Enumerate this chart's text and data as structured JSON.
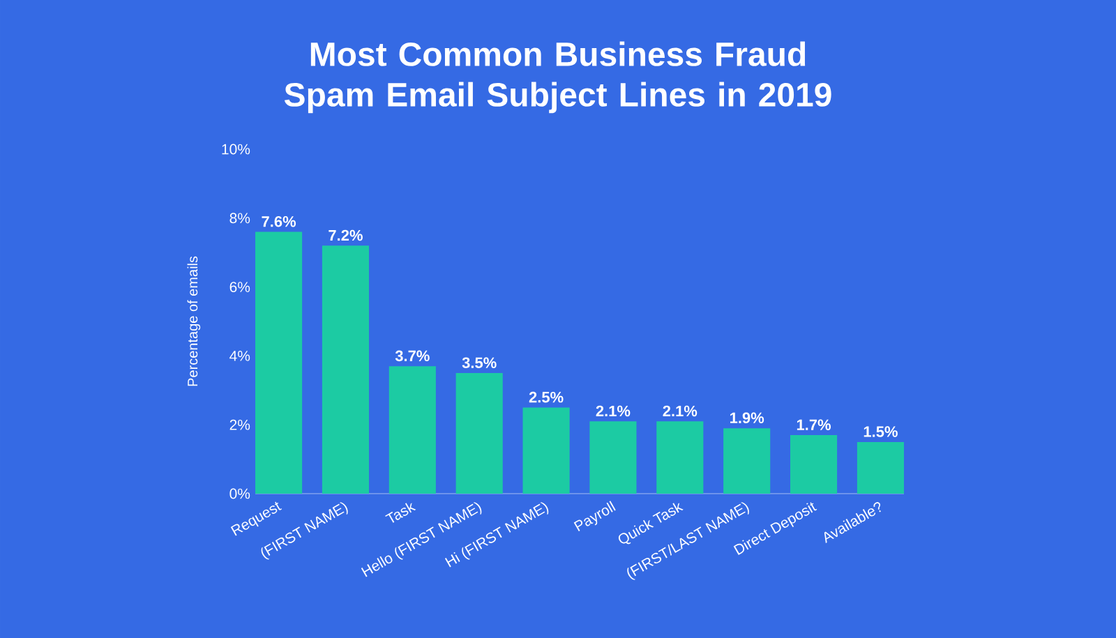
{
  "chart_data": {
    "type": "bar",
    "title": "Most Common Business Fraud Spam Email Subject Lines in 2019",
    "ylabel": "Percentage of emails",
    "categories": [
      "Request",
      "(FIRST NAME)",
      "Task",
      "Hello (FIRST NAME)",
      "Hi (FIRST NAME)",
      "Payroll",
      "Quick Task",
      "(FIRST/LAST NAME)",
      "Direct Deposit",
      "Available?"
    ],
    "values": [
      7.6,
      7.2,
      3.7,
      3.5,
      2.5,
      2.1,
      2.1,
      1.9,
      1.7,
      1.5
    ],
    "value_labels": [
      "7.6%",
      "7.2%",
      "3.7%",
      "3.5%",
      "2.5%",
      "2.1%",
      "2.1%",
      "1.9%",
      "1.7%",
      "1.5%"
    ],
    "color": "#1ccba3",
    "ylim": [
      0,
      10
    ],
    "yticks": [
      {
        "value": 0,
        "label": "0%"
      },
      {
        "value": 2,
        "label": "2%"
      },
      {
        "value": 4,
        "label": "4%"
      },
      {
        "value": 6,
        "label": "6%"
      },
      {
        "value": 8,
        "label": "8%"
      },
      {
        "value": 10,
        "label": "10%"
      }
    ],
    "tick_labels": true
  }
}
